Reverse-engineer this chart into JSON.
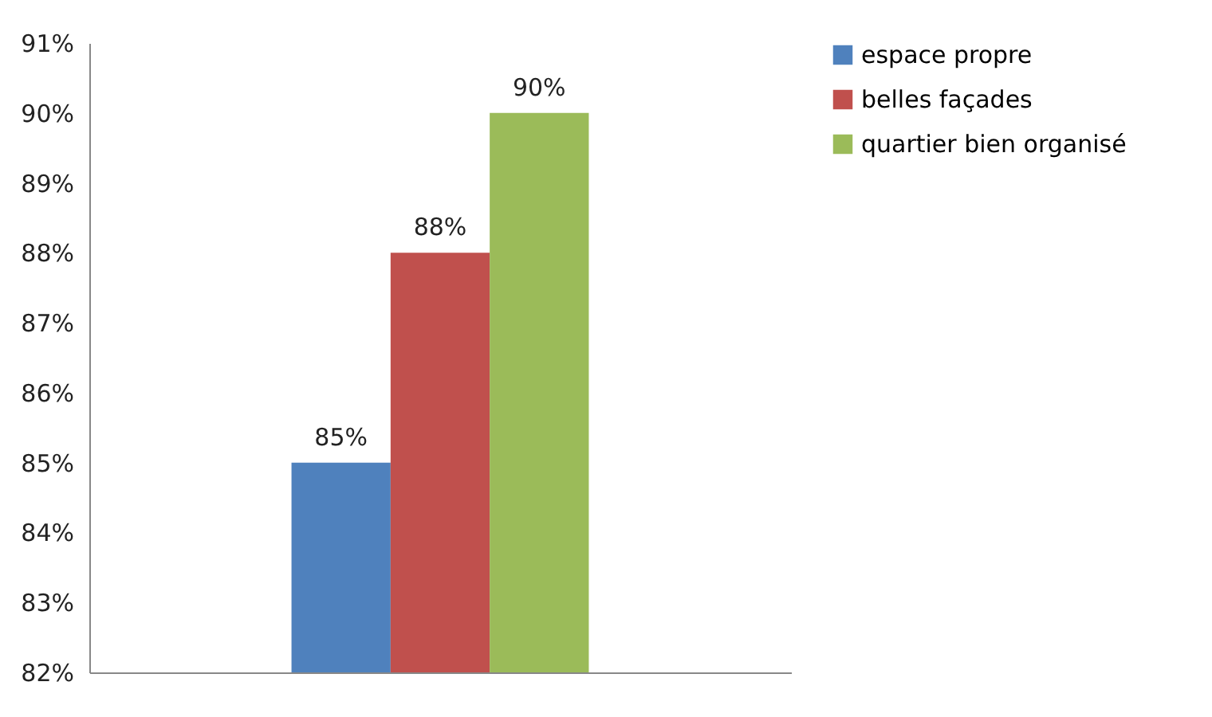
{
  "chart_data": {
    "type": "bar",
    "categories": [
      null
    ],
    "series": [
      {
        "name": "espace propre",
        "color": "#4f81bd",
        "values": [
          85
        ],
        "value_labels": [
          "85%"
        ]
      },
      {
        "name": "belles façades",
        "color": "#c0504d",
        "values": [
          88
        ],
        "value_labels": [
          "88%"
        ]
      },
      {
        "name": "quartier bien organisé",
        "color": "#9bbb59",
        "values": [
          90
        ],
        "value_labels": [
          "90%"
        ]
      }
    ],
    "ylim": [
      82,
      91
    ],
    "yticks": [
      {
        "value": 82,
        "label": "82%"
      },
      {
        "value": 83,
        "label": "83%"
      },
      {
        "value": 84,
        "label": "84%"
      },
      {
        "value": 85,
        "label": "85%"
      },
      {
        "value": 86,
        "label": "86%"
      },
      {
        "value": 87,
        "label": "87%"
      },
      {
        "value": 88,
        "label": "88%"
      },
      {
        "value": 89,
        "label": "89%"
      },
      {
        "value": 90,
        "label": "90%"
      },
      {
        "value": 91,
        "label": "91%"
      }
    ],
    "tick_labels": "y",
    "legend": "right",
    "grid": false
  }
}
